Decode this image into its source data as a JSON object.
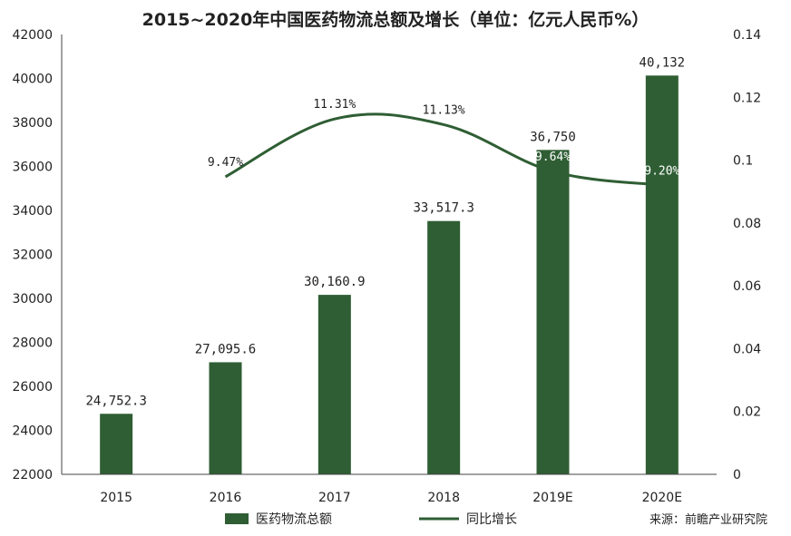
{
  "chart_data": {
    "type": "bar",
    "title": "2015~2020年中国医药物流总额及增长（单位：亿元人民币%）",
    "categories": [
      "2015",
      "2016",
      "2017",
      "2018",
      "2019E",
      "2020E"
    ],
    "series": [
      {
        "name": "医药物流总额",
        "type": "bar",
        "axis": "left",
        "color": "#2f5e34",
        "values": [
          24752.3,
          27095.6,
          30160.9,
          33517.3,
          36750,
          40132
        ],
        "labels": [
          "24,752.3",
          "27,095.6",
          "30,160.9",
          "33,517.3",
          "36,750",
          "40,132"
        ]
      },
      {
        "name": "同比增长",
        "type": "line",
        "axis": "right",
        "color": "#2f5e34",
        "values": [
          null,
          0.0947,
          0.1131,
          0.1113,
          0.0964,
          0.092
        ],
        "labels": [
          "",
          "9.47%",
          "11.31%",
          "11.13%",
          "9.64%",
          "9.20%"
        ]
      }
    ],
    "y_left": {
      "min": 22000,
      "max": 42000,
      "step": 2000,
      "ticks": [
        "22000",
        "24000",
        "26000",
        "28000",
        "30000",
        "32000",
        "34000",
        "36000",
        "38000",
        "40000",
        "42000"
      ]
    },
    "y_right": {
      "min": 0,
      "max": 0.14,
      "step": 0.02,
      "ticks": [
        "0",
        "0.02",
        "0.04",
        "0.06",
        "0.08",
        "0.1",
        "0.12",
        "0.14"
      ]
    },
    "grid": false,
    "legend": "bottom"
  },
  "source": "来源：前瞻产业研究院"
}
